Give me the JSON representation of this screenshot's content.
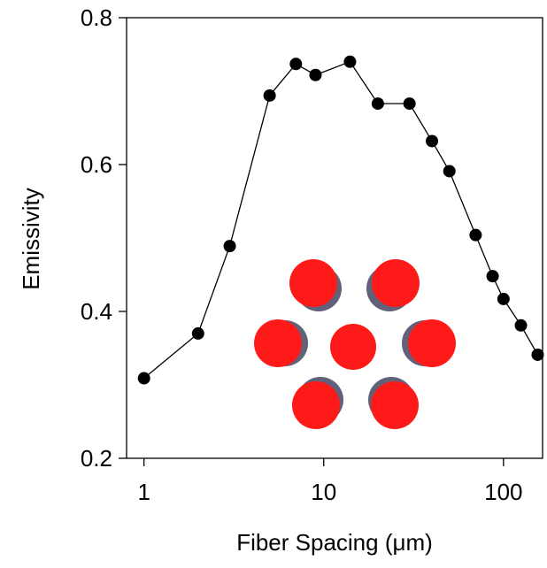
{
  "chart_data": {
    "type": "line",
    "xlabel": "Fiber Spacing (μm)",
    "ylabel": "Emissivity",
    "xscale": "log",
    "x": [
      1,
      2,
      3,
      5,
      7,
      9,
      14,
      20,
      30,
      40,
      50,
      70,
      87,
      100,
      125,
      155
    ],
    "series": [
      {
        "name": "Emissivity",
        "color": "#000000",
        "values": [
          0.309,
          0.37,
          0.489,
          0.694,
          0.737,
          0.722,
          0.74,
          0.683,
          0.683,
          0.632,
          0.591,
          0.504,
          0.448,
          0.417,
          0.381,
          0.341
        ]
      }
    ],
    "xlim": [
      0.8,
      165
    ],
    "xticks": [
      1,
      10,
      100
    ],
    "ylim": [
      0.2,
      0.8
    ],
    "yticks": [
      0.2,
      0.4,
      0.6,
      0.8
    ]
  }
}
